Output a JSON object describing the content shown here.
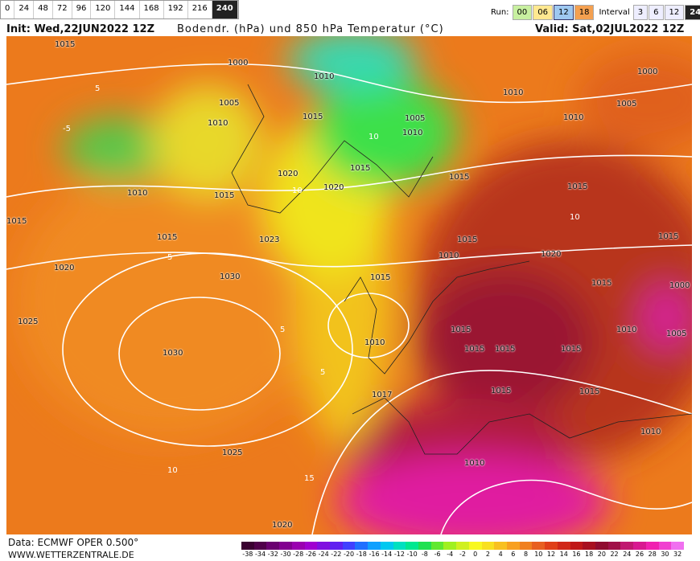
{
  "toolbar": {
    "forecast_hours": [
      "0",
      "24",
      "48",
      "72",
      "96",
      "120",
      "144",
      "168",
      "192",
      "216",
      "240"
    ],
    "run_label": "Run:",
    "runs": [
      "00",
      "06",
      "12",
      "18"
    ],
    "interval_label": "Interval",
    "intervals": [
      "3",
      "6",
      "12",
      "24"
    ]
  },
  "header": {
    "init": "Init: Wed,22JUN2022 12Z",
    "title": "Bodendr. (hPa) und 850 hPa Temperatur (°C)",
    "valid": "Valid: Sat,02JUL2022 12Z"
  },
  "isobar_labels": [
    "1015",
    "1000",
    "1010",
    "1005",
    "1010",
    "1015",
    "1010",
    "1005",
    "1010",
    "1000",
    "1005",
    "1010",
    "1020",
    "1015",
    "1020",
    "1010",
    "1015",
    "1015",
    "1015",
    "1015",
    "1023",
    "1015",
    "1015",
    "1010",
    "1020",
    "1020",
    "1030",
    "1015",
    "1015",
    "1000",
    "1025",
    "1015",
    "1010",
    "1005",
    "1030",
    "1010",
    "1015",
    "1015",
    "1015",
    "1017",
    "1015",
    "1015",
    "1025",
    "1010",
    "1010",
    "1020",
    "1015"
  ],
  "temperature_labels": [
    "5",
    "10",
    "10",
    "5",
    "-5",
    "5",
    "10",
    "15",
    "5",
    "10"
  ],
  "scale_labels": [
    "-38",
    "-34",
    "-32",
    "-30",
    "-28",
    "-26",
    "-24",
    "-22",
    "-20",
    "-18",
    "-16",
    "-14",
    "-12",
    "-10",
    "-8",
    "-6",
    "-4",
    "-2",
    "0",
    "2",
    "4",
    "6",
    "8",
    "10",
    "12",
    "14",
    "16",
    "18",
    "20",
    "22",
    "24",
    "26",
    "28",
    "30",
    "32"
  ],
  "footer": {
    "source": "Data: ECMWF OPER 0.500°",
    "site": "WWW.WETTERZENTRALE.DE"
  }
}
